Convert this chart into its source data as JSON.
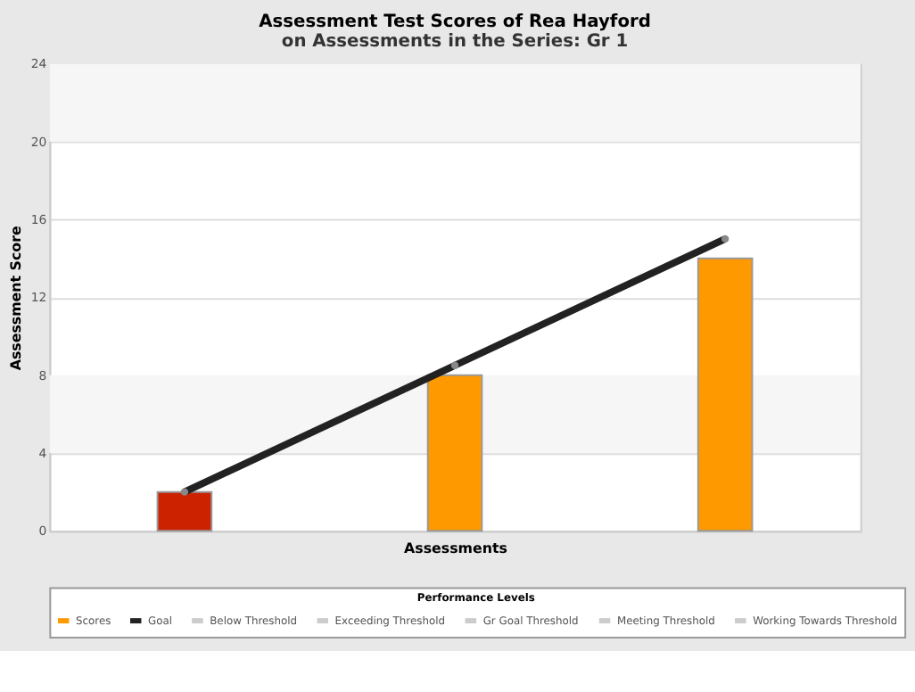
{
  "chart_data": {
    "type": "bar",
    "title": "Assessment Test Scores of Rea Hayford",
    "subtitle": "on Assessments in the Series: Gr 1",
    "xlabel": "Assessments",
    "ylabel": "Assessment Score",
    "legend_title": "Performance Levels",
    "categories": [
      null,
      null,
      null
    ],
    "series": [
      {
        "name": "Scores",
        "color": "#ff9900",
        "colors": [
          "#cc2200",
          "#ff9900",
          "#ff9900"
        ],
        "values": [
          2,
          8,
          14
        ]
      },
      {
        "name": "Goal",
        "type": "line",
        "color": "#222222",
        "values": [
          2,
          8.5,
          15
        ]
      },
      {
        "name": "Below Threshold",
        "type": "line",
        "color": "#cccccc",
        "values": [
          null,
          null,
          null
        ]
      },
      {
        "name": "Exceeding Threshold",
        "type": "line",
        "color": "#cccccc",
        "values": [
          null,
          null,
          null
        ]
      },
      {
        "name": "Gr Goal Threshold",
        "type": "line",
        "color": "#cccccc",
        "values": [
          null,
          null,
          null
        ]
      },
      {
        "name": "Meeting Threshold",
        "type": "line",
        "color": "#cccccc",
        "values": [
          null,
          null,
          null
        ]
      },
      {
        "name": "Working Towards Threshold",
        "type": "line",
        "color": "#cccccc",
        "values": [
          null,
          null,
          null
        ]
      }
    ],
    "bands": [
      {
        "axis": "y",
        "from": 4,
        "to": 8,
        "color": "#f6f6f6"
      },
      {
        "axis": "y",
        "from": 20,
        "to": 24,
        "color": "#f6f6f6"
      }
    ],
    "ylim": [
      0,
      24
    ],
    "yticks": [
      0,
      4,
      8,
      12,
      16,
      20,
      24
    ],
    "grid": "y",
    "legend": "bottom",
    "marker": "circle"
  }
}
